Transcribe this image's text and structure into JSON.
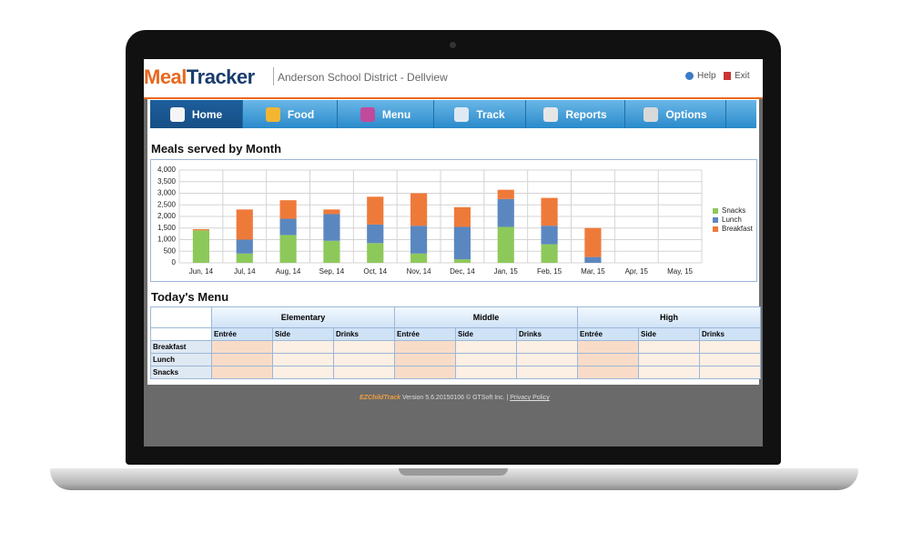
{
  "header": {
    "logo_part1": "Meal",
    "logo_part2": "Tracker",
    "district": "Anderson School District - Dellview",
    "help": "Help",
    "exit": "Exit"
  },
  "nav": [
    "Home",
    "Food",
    "Menu",
    "Track",
    "Reports",
    "Options"
  ],
  "chart_data": {
    "type": "bar",
    "stacked": true,
    "title": "Meals served by Month",
    "categories": [
      "Jun, 14",
      "Jul, 14",
      "Aug, 14",
      "Sep, 14",
      "Oct, 14",
      "Nov, 14",
      "Dec, 14",
      "Jan, 15",
      "Feb, 15",
      "Mar, 15",
      "Apr, 15",
      "May, 15"
    ],
    "series": [
      {
        "name": "Snacks",
        "color": "#8dc95a",
        "values": [
          1400,
          400,
          1200,
          950,
          850,
          400,
          150,
          1550,
          800,
          0,
          0,
          0
        ]
      },
      {
        "name": "Lunch",
        "color": "#5b87c0",
        "values": [
          0,
          600,
          700,
          1150,
          800,
          1200,
          1400,
          1200,
          800,
          250,
          0,
          0
        ]
      },
      {
        "name": "Breakfast",
        "color": "#ee7a3a",
        "values": [
          50,
          1300,
          800,
          200,
          1200,
          1400,
          850,
          400,
          1200,
          1250,
          0,
          0
        ]
      }
    ],
    "ylim": [
      0,
      4000
    ],
    "yticks": [
      0,
      500,
      {
        "value": 1000,
        "label": "1,000"
      },
      {
        "value": 1500,
        "label": "1,500"
      },
      {
        "value": 2000,
        "label": "2,000"
      },
      {
        "value": 2500,
        "label": "2,500"
      },
      {
        "value": 3000,
        "label": "3,000"
      },
      {
        "value": 3500,
        "label": "3,500"
      },
      {
        "value": 4000,
        "label": "4,000"
      }
    ],
    "grid": true,
    "legend": "right"
  },
  "menu": {
    "title": "Today's Menu",
    "groups": [
      "Elementary",
      "Middle",
      "High"
    ],
    "columns": [
      "Entrée",
      "Side",
      "Drinks"
    ],
    "rows": [
      "Breakfast",
      "Lunch",
      "Snacks"
    ]
  },
  "footer": {
    "brand": "EZChildTrack",
    "version": "Version 5.6.20150106 © GTSoft Inc. |",
    "privacy": "Privacy Policy"
  }
}
